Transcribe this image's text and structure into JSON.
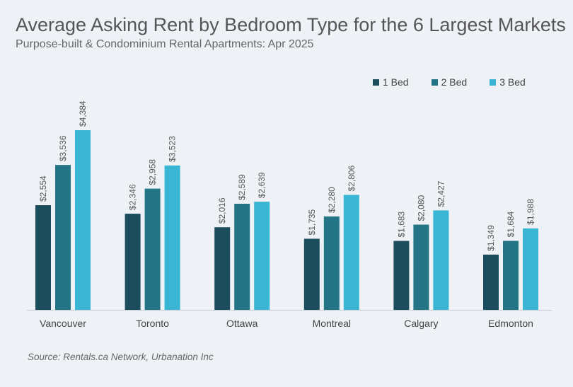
{
  "chart_data": {
    "type": "bar",
    "title": "Average Asking Rent by Bedroom Type for the 6 Largest Markets",
    "subtitle": "Purpose-built & Condominium Rental Apartments: Apr 2025",
    "categories": [
      "Vancouver",
      "Toronto",
      "Ottawa",
      "Montreal",
      "Calgary",
      "Edmonton"
    ],
    "series": [
      {
        "name": "1 Bed",
        "color": "#1c4d5c",
        "values": [
          2554,
          2346,
          2016,
          1735,
          1683,
          1349
        ],
        "labels": [
          "$2,554",
          "$2,346",
          "$2,016",
          "$1,735",
          "$1,683",
          "$1,349"
        ]
      },
      {
        "name": "2 Bed",
        "color": "#237485",
        "values": [
          3536,
          2958,
          2589,
          2280,
          2080,
          1684
        ],
        "labels": [
          "$3,536",
          "$2,958",
          "$2,589",
          "$2,280",
          "$2,080",
          "$1,684"
        ]
      },
      {
        "name": "3 Bed",
        "color": "#3ab5d3",
        "values": [
          4384,
          3523,
          2639,
          2806,
          2427,
          1988
        ],
        "labels": [
          "$4,384",
          "$3,523",
          "$2,639",
          "$2,806",
          "$2,427",
          "$1,988"
        ]
      }
    ],
    "ylim": [
      0,
      4384
    ],
    "grid": false,
    "legend_position": "top-right",
    "source": "Source: Rentals.ca Network, Urbanation Inc"
  }
}
